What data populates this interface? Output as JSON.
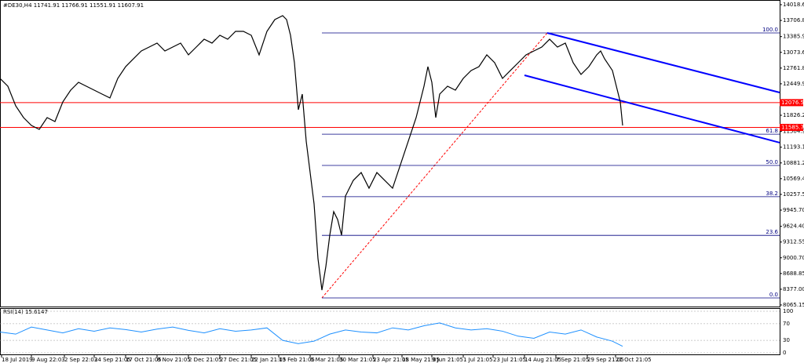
{
  "chart_data": {
    "type": "line",
    "title": "#DE30,H4 11741.91 11766.91 11551.91 11607.91",
    "xlim": [
      0,
      993
    ],
    "ylim": [
      8018,
      14096
    ],
    "xticks": [
      {
        "value": 2,
        "label": "18 Jul 2019"
      },
      {
        "value": 40,
        "label": "9 Aug 22:03"
      },
      {
        "value": 82,
        "label": "2 Sep 22:03"
      },
      {
        "value": 120,
        "label": "24 Sep 21:05"
      },
      {
        "value": 160,
        "label": "17 Oct 21:05"
      },
      {
        "value": 200,
        "label": "8 Nov 21:05"
      },
      {
        "value": 240,
        "label": "2 Dec 21:05"
      },
      {
        "value": 280,
        "label": "27 Dec 21:05"
      },
      {
        "value": 320,
        "label": "22 Jan 21:05"
      },
      {
        "value": 355,
        "label": "13 Feb 21:05"
      },
      {
        "value": 395,
        "label": "6 Mar 21:05"
      },
      {
        "value": 432,
        "label": "30 Mar 21:05"
      },
      {
        "value": 475,
        "label": "23 Apr 21:05"
      },
      {
        "value": 512,
        "label": "18 May 21:05"
      },
      {
        "value": 550,
        "label": "9 Jun 21:05"
      },
      {
        "value": 590,
        "label": "1 Jul 21:05"
      },
      {
        "value": 628,
        "label": "23 Jul 21:05"
      },
      {
        "value": 668,
        "label": "14 Aug 21:05"
      },
      {
        "value": 708,
        "label": "7 Sep 21:05"
      },
      {
        "value": 748,
        "label": "29 Sep 21:05"
      },
      {
        "value": 784,
        "label": "21 Oct 21:05"
      }
    ],
    "yticks": [
      {
        "value": 14018.65,
        "label": "14018.65"
      },
      {
        "value": 13706.8,
        "label": "13706.80"
      },
      {
        "value": 13385.9,
        "label": "13385.90"
      },
      {
        "value": 13073.65,
        "label": "13073.65"
      },
      {
        "value": 12761.8,
        "label": "12761.80"
      },
      {
        "value": 12449.95,
        "label": "12449.95"
      },
      {
        "value": 11826.25,
        "label": "11826.25"
      },
      {
        "value": 11504.95,
        "label": "11504.95"
      },
      {
        "value": 11193.1,
        "label": "11193.10"
      },
      {
        "value": 10881.25,
        "label": "10881.25"
      },
      {
        "value": 10569.4,
        "label": "10569.40"
      },
      {
        "value": 10257.55,
        "label": "10257.55"
      },
      {
        "value": 9945.7,
        "label": "9945.70"
      },
      {
        "value": 9624.4,
        "label": "9624.40"
      },
      {
        "value": 9312.55,
        "label": "9312.55"
      },
      {
        "value": 9000.7,
        "label": "9000.70"
      },
      {
        "value": 8688.85,
        "label": "8688.85"
      },
      {
        "value": 8377,
        "label": "8377.00"
      },
      {
        "value": 8065.15,
        "label": "8065.15"
      }
    ],
    "series": [
      {
        "color": "#000000",
        "x": [
          0,
          10,
          20,
          30,
          40,
          50,
          60,
          70,
          80,
          90,
          100,
          110,
          120,
          130,
          140,
          150,
          160,
          170,
          180,
          190,
          200,
          210,
          220,
          230,
          240,
          250,
          260,
          270,
          280,
          290,
          300,
          310,
          320,
          330,
          340,
          350,
          360,
          365,
          370,
          375,
          380,
          385,
          390,
          395,
          400,
          405,
          410,
          415,
          420,
          425,
          430,
          435,
          440,
          450,
          460,
          470,
          480,
          490,
          500,
          510,
          520,
          530,
          540,
          545,
          550,
          555,
          560,
          570,
          580,
          590,
          600,
          610,
          620,
          630,
          640,
          650,
          660,
          670,
          680,
          690,
          700,
          710,
          720,
          730,
          740,
          750,
          760,
          765,
          770,
          780,
          785,
          790,
          793
        ],
        "values": [
          12557,
          12402,
          12013,
          11780,
          11624,
          11547,
          11780,
          11702,
          12091,
          12324,
          12480,
          12402,
          12324,
          12246,
          12169,
          12557,
          12790,
          12946,
          13101,
          13179,
          13257,
          13101,
          13179,
          13257,
          13024,
          13179,
          13334,
          13257,
          13412,
          13334,
          13490,
          13490,
          13412,
          13024,
          13490,
          13723,
          13801,
          13723,
          13412,
          12868,
          11936,
          12246,
          11313,
          10691,
          10070,
          8982,
          8360,
          8826,
          9448,
          9915,
          9759,
          9448,
          10225,
          10536,
          10691,
          10380,
          10691,
          10536,
          10380,
          10847,
          11313,
          11780,
          12402,
          12790,
          12480,
          11780,
          12246,
          12402,
          12324,
          12557,
          12713,
          12790,
          13024,
          12868,
          12557,
          12713,
          12868,
          13024,
          13101,
          13179,
          13334,
          13179,
          13257,
          12868,
          12635,
          12790,
          13024,
          13101,
          12946,
          12713,
          12402,
          12091,
          11624
        ]
      }
    ],
    "price_lines": [
      {
        "value": 12076.58,
        "color": "#ff0000"
      },
      {
        "value": 11585.79,
        "color": "#ff0000"
      }
    ],
    "fibonacci": {
      "color": "#000080",
      "x_start": 410,
      "anchor_color": "#ff0000",
      "levels": [
        {
          "label": "100.0",
          "value": 13459
        },
        {
          "label": "61.8",
          "value": 11452
        },
        {
          "label": "50.0",
          "value": 10832
        },
        {
          "label": "38.2",
          "value": 10212
        },
        {
          "label": "23.6",
          "value": 9445
        },
        {
          "label": "0.0",
          "value": 8205
        }
      ]
    },
    "channel": {
      "color": "#0000ff",
      "lines": [
        {
          "x": [
            697,
            993
          ],
          "values": [
            13459,
            12277
          ]
        },
        {
          "x": [
            668,
            993
          ],
          "values": [
            12619,
            11283
          ]
        }
      ]
    },
    "rsi": {
      "title": "RSI(14) 15.6147",
      "color": "#1e90ff",
      "ylim": [
        0,
        100
      ],
      "yticks": [
        100,
        70,
        30,
        0
      ],
      "x": [
        0,
        20,
        40,
        60,
        80,
        100,
        120,
        140,
        160,
        180,
        200,
        220,
        240,
        260,
        280,
        300,
        320,
        340,
        360,
        380,
        400,
        420,
        440,
        460,
        480,
        500,
        520,
        540,
        560,
        580,
        600,
        620,
        640,
        660,
        680,
        700,
        720,
        740,
        760,
        780,
        793
      ],
      "values": [
        50,
        45,
        62,
        55,
        48,
        58,
        52,
        60,
        56,
        50,
        57,
        62,
        54,
        48,
        58,
        52,
        55,
        60,
        30,
        22,
        28,
        45,
        55,
        50,
        48,
        60,
        55,
        65,
        72,
        60,
        55,
        58,
        52,
        40,
        35,
        50,
        45,
        55,
        38,
        28,
        15.6
      ]
    }
  }
}
